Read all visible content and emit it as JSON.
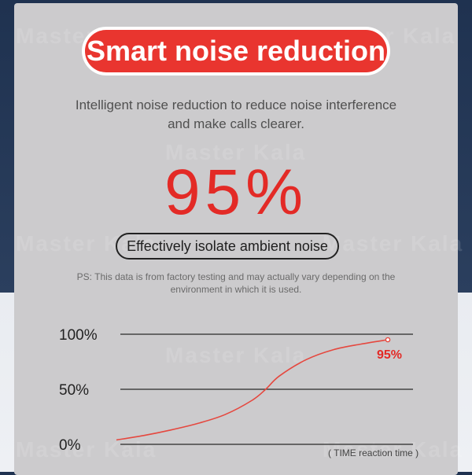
{
  "title": "Smart noise reduction",
  "subtitle": {
    "line1": "Intelligent noise reduction to reduce noise interference",
    "line2": "and make calls clearer."
  },
  "big_value": "95%",
  "isolate_label": "Effectively isolate ambient noise",
  "note": {
    "line1": "PS: This data is from factory testing and may actually vary depending on the",
    "line2": "environment in which it is used."
  },
  "watermark": "Master Kala",
  "colors": {
    "accent_red": "#e32a26",
    "pill_red": "#e9352f",
    "card_gray": "#cccbcd"
  },
  "chart_data": {
    "type": "line",
    "xlabel": "( TIME reaction time )",
    "ylabel": "",
    "ylim": [
      0,
      100
    ],
    "y_ticks": [
      {
        "value": 100,
        "label": "100%"
      },
      {
        "value": 50,
        "label": "50%"
      },
      {
        "value": 0,
        "label": "0%"
      }
    ],
    "series": [
      {
        "x": [
          0,
          0.1,
          0.2,
          0.3,
          0.4,
          0.5,
          0.55,
          0.6,
          0.7,
          0.8,
          0.9,
          1.0
        ],
        "values": [
          4,
          8,
          13,
          19,
          27,
          40,
          50,
          62,
          77,
          86,
          91,
          95
        ]
      }
    ],
    "end_label": "95%"
  }
}
